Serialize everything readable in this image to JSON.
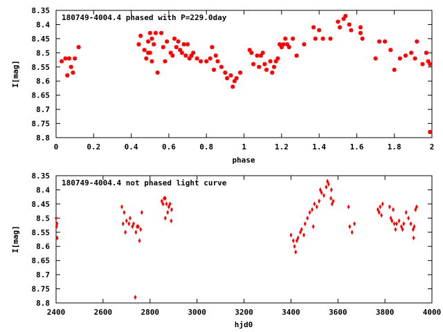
{
  "chart_data": [
    {
      "type": "scatter",
      "title": "180749-4004.4 phased with P=229.0day",
      "xlabel": "phase",
      "ylabel": "I[mag]",
      "xlim": [
        0,
        2
      ],
      "ylim": [
        8.35,
        8.8
      ],
      "y_inverted": true,
      "x_ticks": [
        "0",
        "0.2",
        "0.4",
        "0.6",
        "0.8",
        "1",
        "1.2",
        "1.4",
        "1.6",
        "1.8",
        "2"
      ],
      "y_ticks": [
        "8.35",
        "8.4",
        "8.45",
        "8.5",
        "8.55",
        "8.6",
        "8.65",
        "8.7",
        "8.75",
        "8.8"
      ],
      "marker_color": "#ff0000",
      "series": [
        {
          "points": [
            [
              0.03,
              8.53
            ],
            [
              0.05,
              8.52
            ],
            [
              0.06,
              8.58
            ],
            [
              0.07,
              8.52
            ],
            [
              0.08,
              8.55
            ],
            [
              0.09,
              8.57
            ],
            [
              0.1,
              8.52
            ],
            [
              0.12,
              8.48
            ],
            [
              0.44,
              8.47
            ],
            [
              0.45,
              8.44
            ],
            [
              0.47,
              8.49
            ],
            [
              0.48,
              8.52
            ],
            [
              0.49,
              8.46
            ],
            [
              0.49,
              8.5
            ],
            [
              0.5,
              8.43
            ],
            [
              0.5,
              8.5
            ],
            [
              0.51,
              8.53
            ],
            [
              0.51,
              8.45
            ],
            [
              0.52,
              8.47
            ],
            [
              0.53,
              8.43
            ],
            [
              0.54,
              8.57
            ],
            [
              0.56,
              8.43
            ],
            [
              0.57,
              8.48
            ],
            [
              0.58,
              8.53
            ],
            [
              0.59,
              8.46
            ],
            [
              0.61,
              8.5
            ],
            [
              0.62,
              8.51
            ],
            [
              0.63,
              8.45
            ],
            [
              0.64,
              8.48
            ],
            [
              0.65,
              8.46
            ],
            [
              0.66,
              8.49
            ],
            [
              0.67,
              8.5
            ],
            [
              0.68,
              8.47
            ],
            [
              0.69,
              8.51
            ],
            [
              0.7,
              8.47
            ],
            [
              0.71,
              8.52
            ],
            [
              0.72,
              8.51
            ],
            [
              0.73,
              8.5
            ],
            [
              0.75,
              8.52
            ],
            [
              0.77,
              8.53
            ],
            [
              0.8,
              8.53
            ],
            [
              0.82,
              8.52
            ],
            [
              0.83,
              8.48
            ],
            [
              0.84,
              8.56
            ],
            [
              0.85,
              8.51
            ],
            [
              0.86,
              8.53
            ],
            [
              0.88,
              8.55
            ],
            [
              0.9,
              8.57
            ],
            [
              0.91,
              8.59
            ],
            [
              0.93,
              8.58
            ],
            [
              0.94,
              8.62
            ],
            [
              0.95,
              8.6
            ],
            [
              0.96,
              8.59
            ],
            [
              0.98,
              8.57
            ],
            [
              1.03,
              8.49
            ],
            [
              1.04,
              8.5
            ],
            [
              1.05,
              8.54
            ],
            [
              1.07,
              8.51
            ],
            [
              1.08,
              8.55
            ],
            [
              1.09,
              8.51
            ],
            [
              1.1,
              8.5
            ],
            [
              1.11,
              8.54
            ],
            [
              1.12,
              8.56
            ],
            [
              1.14,
              8.53
            ],
            [
              1.15,
              8.57
            ],
            [
              1.16,
              8.55
            ],
            [
              1.17,
              8.53
            ],
            [
              1.18,
              8.52
            ],
            [
              1.19,
              8.47
            ],
            [
              1.2,
              8.48
            ],
            [
              1.21,
              8.47
            ],
            [
              1.22,
              8.45
            ],
            [
              1.23,
              8.47
            ],
            [
              1.24,
              8.48
            ],
            [
              1.26,
              8.45
            ],
            [
              1.28,
              8.51
            ],
            [
              1.32,
              8.47
            ],
            [
              1.37,
              8.41
            ],
            [
              1.38,
              8.45
            ],
            [
              1.4,
              8.42
            ],
            [
              1.42,
              8.45
            ],
            [
              1.46,
              8.45
            ],
            [
              1.5,
              8.39
            ],
            [
              1.51,
              8.41
            ],
            [
              1.53,
              8.38
            ],
            [
              1.54,
              8.37
            ],
            [
              1.56,
              8.4
            ],
            [
              1.57,
              8.42
            ],
            [
              1.62,
              8.41
            ],
            [
              1.62,
              8.43
            ],
            [
              1.63,
              8.45
            ],
            [
              1.7,
              8.52
            ],
            [
              1.72,
              8.46
            ],
            [
              1.75,
              8.46
            ],
            [
              1.78,
              8.49
            ],
            [
              1.8,
              8.56
            ],
            [
              1.83,
              8.52
            ],
            [
              1.86,
              8.51
            ],
            [
              1.89,
              8.5
            ],
            [
              1.91,
              8.52
            ],
            [
              1.92,
              8.46
            ],
            [
              1.95,
              8.54
            ],
            [
              1.97,
              8.5
            ],
            [
              1.98,
              8.53
            ],
            [
              1.99,
              8.54
            ],
            [
              1.99,
              8.78
            ]
          ]
        }
      ]
    },
    {
      "type": "scatter",
      "title": "180749-4004.4 not phased light curve",
      "xlabel": "hjd0",
      "ylabel": "I[mag]",
      "xlim": [
        2400,
        4000
      ],
      "ylim": [
        8.35,
        8.8
      ],
      "y_inverted": true,
      "x_ticks": [
        "2400",
        "2600",
        "2800",
        "3000",
        "3200",
        "3400",
        "3600",
        "3800",
        "4000"
      ],
      "y_ticks": [
        "8.35",
        "8.4",
        "8.45",
        "8.5",
        "8.55",
        "8.6",
        "8.65",
        "8.7",
        "8.75",
        "8.8"
      ],
      "marker_color": "#ff0000",
      "series": [
        {
          "points": [
            [
              2400,
              8.5
            ],
            [
              2402,
              8.53
            ],
            [
              2404,
              8.52
            ],
            [
              2405,
              8.57
            ],
            [
              2680,
              8.46
            ],
            [
              2685,
              8.52
            ],
            [
              2690,
              8.48
            ],
            [
              2695,
              8.55
            ],
            [
              2700,
              8.51
            ],
            [
              2710,
              8.52
            ],
            [
              2715,
              8.5
            ],
            [
              2725,
              8.53
            ],
            [
              2730,
              8.52
            ],
            [
              2740,
              8.55
            ],
            [
              2745,
              8.53
            ],
            [
              2750,
              8.53
            ],
            [
              2755,
              8.58
            ],
            [
              2760,
              8.54
            ],
            [
              2765,
              8.48
            ],
            [
              2737,
              8.78
            ],
            [
              2850,
              8.44
            ],
            [
              2855,
              8.45
            ],
            [
              2860,
              8.43
            ],
            [
              2865,
              8.43
            ],
            [
              2870,
              8.45
            ],
            [
              2875,
              8.48
            ],
            [
              2880,
              8.46
            ],
            [
              2885,
              8.45
            ],
            [
              2890,
              8.51
            ],
            [
              2892,
              8.47
            ],
            [
              2865,
              8.5
            ],
            [
              3400,
              8.56
            ],
            [
              3410,
              8.58
            ],
            [
              3415,
              8.6
            ],
            [
              3420,
              8.62
            ],
            [
              3425,
              8.58
            ],
            [
              3430,
              8.57
            ],
            [
              3440,
              8.55
            ],
            [
              3445,
              8.54
            ],
            [
              3455,
              8.56
            ],
            [
              3460,
              8.52
            ],
            [
              3470,
              8.5
            ],
            [
              3480,
              8.48
            ],
            [
              3490,
              8.47
            ],
            [
              3495,
              8.53
            ],
            [
              3500,
              8.45
            ],
            [
              3510,
              8.46
            ],
            [
              3520,
              8.44
            ],
            [
              3525,
              8.4
            ],
            [
              3530,
              8.41
            ],
            [
              3540,
              8.42
            ],
            [
              3550,
              8.39
            ],
            [
              3555,
              8.37
            ],
            [
              3560,
              8.38
            ],
            [
              3570,
              8.43
            ],
            [
              3572,
              8.4
            ],
            [
              3575,
              8.45
            ],
            [
              3580,
              8.44
            ],
            [
              3645,
              8.46
            ],
            [
              3650,
              8.53
            ],
            [
              3660,
              8.55
            ],
            [
              3670,
              8.52
            ],
            [
              3770,
              8.47
            ],
            [
              3775,
              8.48
            ],
            [
              3780,
              8.46
            ],
            [
              3785,
              8.49
            ],
            [
              3790,
              8.45
            ],
            [
              3820,
              8.46
            ],
            [
              3825,
              8.5
            ],
            [
              3830,
              8.51
            ],
            [
              3835,
              8.47
            ],
            [
              3840,
              8.52
            ],
            [
              3845,
              8.54
            ],
            [
              3850,
              8.52
            ],
            [
              3860,
              8.51
            ],
            [
              3870,
              8.53
            ],
            [
              3875,
              8.54
            ],
            [
              3880,
              8.52
            ],
            [
              3890,
              8.48
            ],
            [
              3900,
              8.5
            ],
            [
              3910,
              8.52
            ],
            [
              3920,
              8.54
            ],
            [
              3922,
              8.57
            ],
            [
              3925,
              8.53
            ],
            [
              3930,
              8.47
            ],
            [
              3935,
              8.46
            ]
          ]
        }
      ]
    }
  ]
}
